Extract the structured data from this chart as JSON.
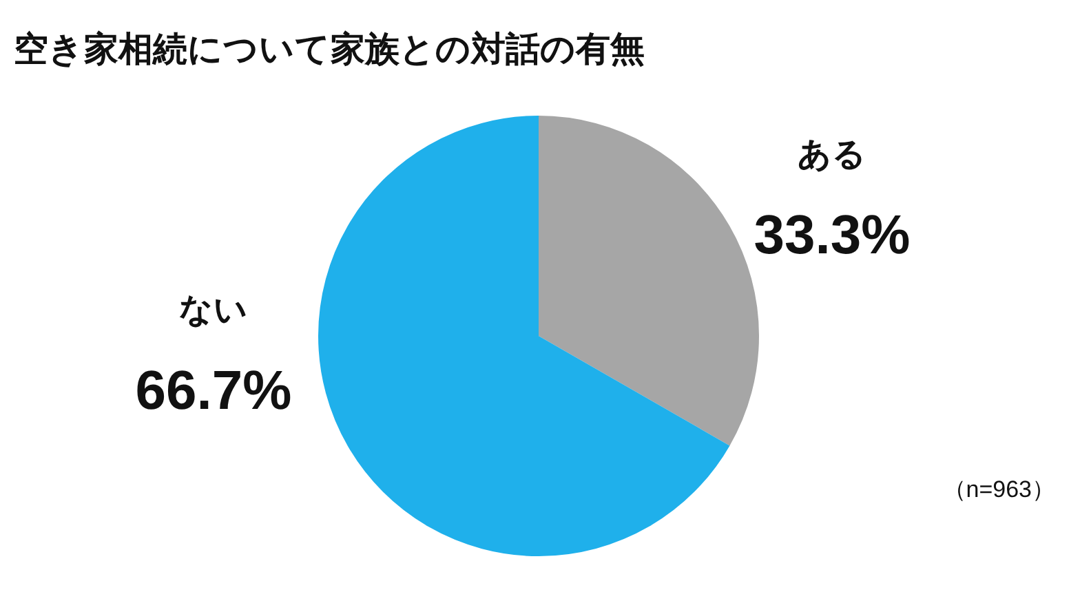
{
  "chart_data": {
    "type": "pie",
    "title": "空き家相続について家族との対話の有無",
    "categories": [
      "ある",
      "ない"
    ],
    "values": [
      33.3,
      66.7
    ],
    "colors": [
      "#a6a6a6",
      "#1fb0eb"
    ],
    "value_labels": [
      "33.3%",
      "66.7%"
    ],
    "annotations": [
      "（n=963）"
    ]
  }
}
